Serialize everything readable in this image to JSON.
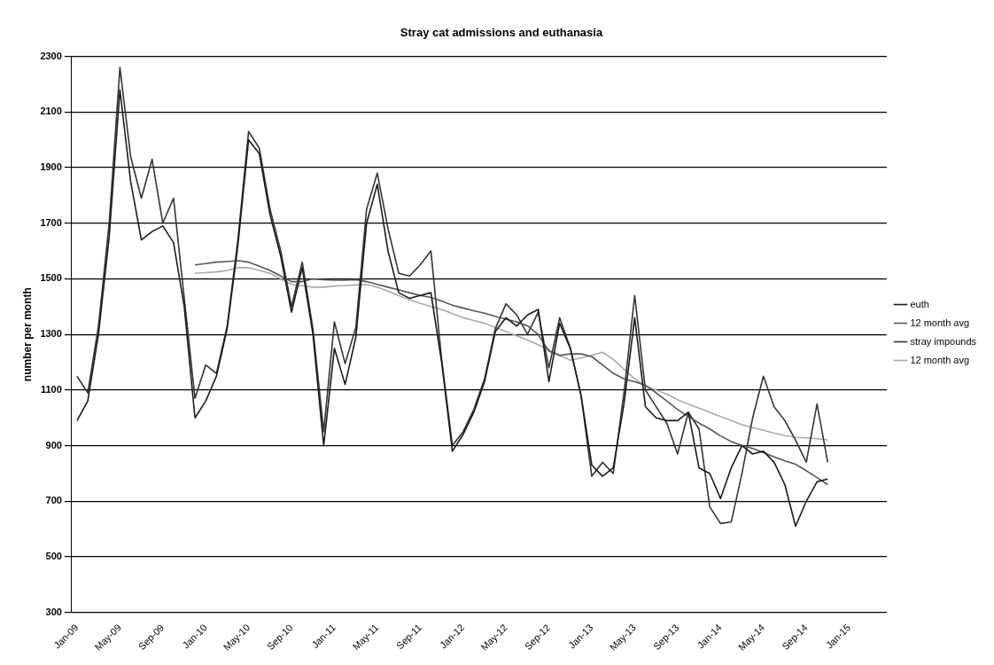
{
  "chart_data": {
    "type": "line",
    "title": "Stray cat admissions and euthanasia",
    "ylabel": "number per month",
    "categories": [
      "Jan-09",
      null,
      null,
      null,
      "May-09",
      null,
      null,
      null,
      "Sep-09",
      null,
      null,
      null,
      "Jan-10",
      null,
      null,
      null,
      "May-10",
      null,
      null,
      null,
      "Sep-10",
      null,
      null,
      null,
      "Jan-11",
      null,
      null,
      null,
      "May-11",
      null,
      null,
      null,
      "Sep-11",
      null,
      null,
      null,
      "Jan-12",
      null,
      null,
      null,
      "May-12",
      null,
      null,
      null,
      "Sep-12",
      null,
      null,
      null,
      "Jan-13",
      null,
      null,
      null,
      "May-13",
      null,
      null,
      null,
      "Sep-13",
      null,
      null,
      null,
      "Jan-14",
      null,
      null,
      null,
      "May-14",
      null,
      null,
      null,
      "Sep-14",
      null,
      null,
      null,
      "Jan-15",
      null,
      null,
      null
    ],
    "series": [
      {
        "name": "euth",
        "color": "#1a1a1a",
        "values": [
          990,
          1060,
          1300,
          1650,
          2180,
          1850,
          1640,
          1670,
          1690,
          1630,
          1400,
          1000,
          1060,
          1150,
          1320,
          1620,
          2000,
          1950,
          1730,
          1580,
          1380,
          1540,
          1300,
          900,
          1250,
          1120,
          1290,
          1700,
          1840,
          1600,
          1450,
          1430,
          1440,
          1450,
          1200,
          880,
          940,
          1020,
          1130,
          1310,
          1360,
          1330,
          1370,
          1390,
          1130,
          1340,
          1250,
          1080,
          830,
          790,
          820,
          1050,
          1360,
          1040,
          1000,
          990,
          990,
          1020,
          820,
          800,
          710,
          820,
          900,
          870,
          880,
          840,
          760,
          610,
          700,
          770,
          780,
          null,
          null,
          null,
          null,
          null
        ]
      },
      {
        "name": "12 month avg",
        "color": "#555555",
        "values": [
          null,
          null,
          null,
          null,
          null,
          null,
          null,
          null,
          null,
          null,
          null,
          1550,
          1555,
          1560,
          1562,
          1565,
          1560,
          1545,
          1530,
          1510,
          1490,
          1490,
          1500,
          1497,
          1495,
          1495,
          1497,
          1490,
          1480,
          1470,
          1460,
          1450,
          1440,
          1433,
          1420,
          1405,
          1395,
          1385,
          1376,
          1365,
          1355,
          1345,
          1331,
          1300,
          1240,
          1225,
          1230,
          1230,
          1220,
          1190,
          1160,
          1140,
          1130,
          1117,
          1090,
          1060,
          1030,
          1005,
          981,
          960,
          935,
          915,
          900,
          890,
          875,
          860,
          845,
          833,
          810,
          785,
          760,
          null,
          null,
          null,
          null,
          null
        ]
      },
      {
        "name": "stray impounds",
        "color": "#333333",
        "values": [
          1150,
          1090,
          1330,
          1700,
          2260,
          1940,
          1790,
          1930,
          1700,
          1790,
          1430,
          1070,
          1190,
          1160,
          1330,
          1640,
          2030,
          1970,
          1750,
          1600,
          1400,
          1560,
          1320,
          950,
          1345,
          1195,
          1325,
          1750,
          1880,
          1680,
          1520,
          1510,
          1550,
          1600,
          1210,
          900,
          950,
          1030,
          1140,
          1320,
          1410,
          1370,
          1300,
          1380,
          1180,
          1360,
          1250,
          1080,
          790,
          840,
          800,
          1090,
          1440,
          1100,
          1040,
          980,
          870,
          1020,
          960,
          680,
          620,
          625,
          800,
          1000,
          1150,
          1040,
          990,
          920,
          840,
          1050,
          840,
          null,
          null,
          null,
          null,
          null
        ]
      },
      {
        "name": "12 month avg",
        "color": "#aaaaaa",
        "values": [
          null,
          null,
          null,
          null,
          null,
          null,
          null,
          null,
          null,
          null,
          null,
          1520,
          1522,
          1525,
          1530,
          1540,
          1540,
          1530,
          1520,
          1500,
          1480,
          1475,
          1470,
          1470,
          1474,
          1476,
          1478,
          1480,
          1470,
          1455,
          1440,
          1425,
          1412,
          1400,
          1390,
          1375,
          1360,
          1350,
          1340,
          1325,
          1310,
          1295,
          1280,
          1263,
          1245,
          1225,
          1207,
          1215,
          1225,
          1236,
          1210,
          1175,
          1140,
          1115,
          1100,
          1085,
          1065,
          1049,
          1035,
          1020,
          1005,
          990,
          975,
          965,
          955,
          945,
          936,
          930,
          928,
          925,
          920,
          null,
          null,
          null,
          null,
          null
        ]
      }
    ],
    "ylim": [
      300,
      2300
    ],
    "yticks": [
      300,
      500,
      700,
      900,
      1100,
      1300,
      1500,
      1700,
      1900,
      2100,
      2300
    ],
    "grid": "y",
    "legend": "right",
    "marker": "none",
    "line_style": "solid"
  }
}
